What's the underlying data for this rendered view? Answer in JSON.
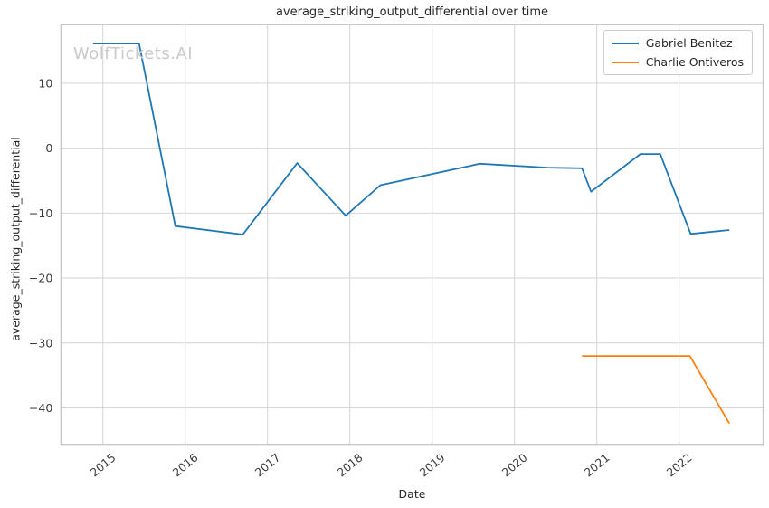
{
  "title": "average_striking_output_differential over time",
  "watermark": "WolfTickets.AI",
  "colors": {
    "series_blue": "#1f77b4",
    "series_orange": "#ff7f0e",
    "grid": "#d4d4d4",
    "plot_border": "#c2c2c2",
    "text": "#262626",
    "tick_text": "#3b3b3b",
    "watermark": "#c9c9c9",
    "background": "#ffffff"
  },
  "chart_data": {
    "type": "line",
    "title": "average_striking_output_differential over time",
    "xlabel": "Date",
    "ylabel": "average_striking_output_differential",
    "xlim": [
      2014.49,
      2023.02
    ],
    "ylim": [
      -45.6,
      19.0
    ],
    "x_ticks": [
      2015,
      2016,
      2017,
      2018,
      2019,
      2020,
      2021,
      2022
    ],
    "x_tick_labels": [
      "2015",
      "2016",
      "2017",
      "2018",
      "2019",
      "2020",
      "2021",
      "2022"
    ],
    "y_ticks": [
      10,
      0,
      -10,
      -20,
      -30,
      -40
    ],
    "y_tick_labels": [
      "10",
      "0",
      "−10",
      "−20",
      "−30",
      "−40"
    ],
    "grid": true,
    "legend_position": "upper right",
    "series": [
      {
        "name": "Gabriel Benitez",
        "color": "#1f77b4",
        "points": [
          [
            2014.88,
            16.1
          ],
          [
            2015.44,
            16.1
          ],
          [
            2015.88,
            -12.0
          ],
          [
            2016.7,
            -13.3
          ],
          [
            2017.36,
            -2.3
          ],
          [
            2017.95,
            -10.4
          ],
          [
            2018.37,
            -5.7
          ],
          [
            2019.58,
            -2.4
          ],
          [
            2020.4,
            -3.0
          ],
          [
            2020.82,
            -3.1
          ],
          [
            2020.93,
            -6.7
          ],
          [
            2021.53,
            -0.9
          ],
          [
            2021.77,
            -0.9
          ],
          [
            2022.14,
            -13.2
          ],
          [
            2022.61,
            -12.6
          ]
        ]
      },
      {
        "name": "Charlie Ontiveros",
        "color": "#ff7f0e",
        "points": [
          [
            2020.82,
            -32.0
          ],
          [
            2022.13,
            -32.0
          ],
          [
            2022.61,
            -42.4
          ]
        ]
      }
    ]
  }
}
